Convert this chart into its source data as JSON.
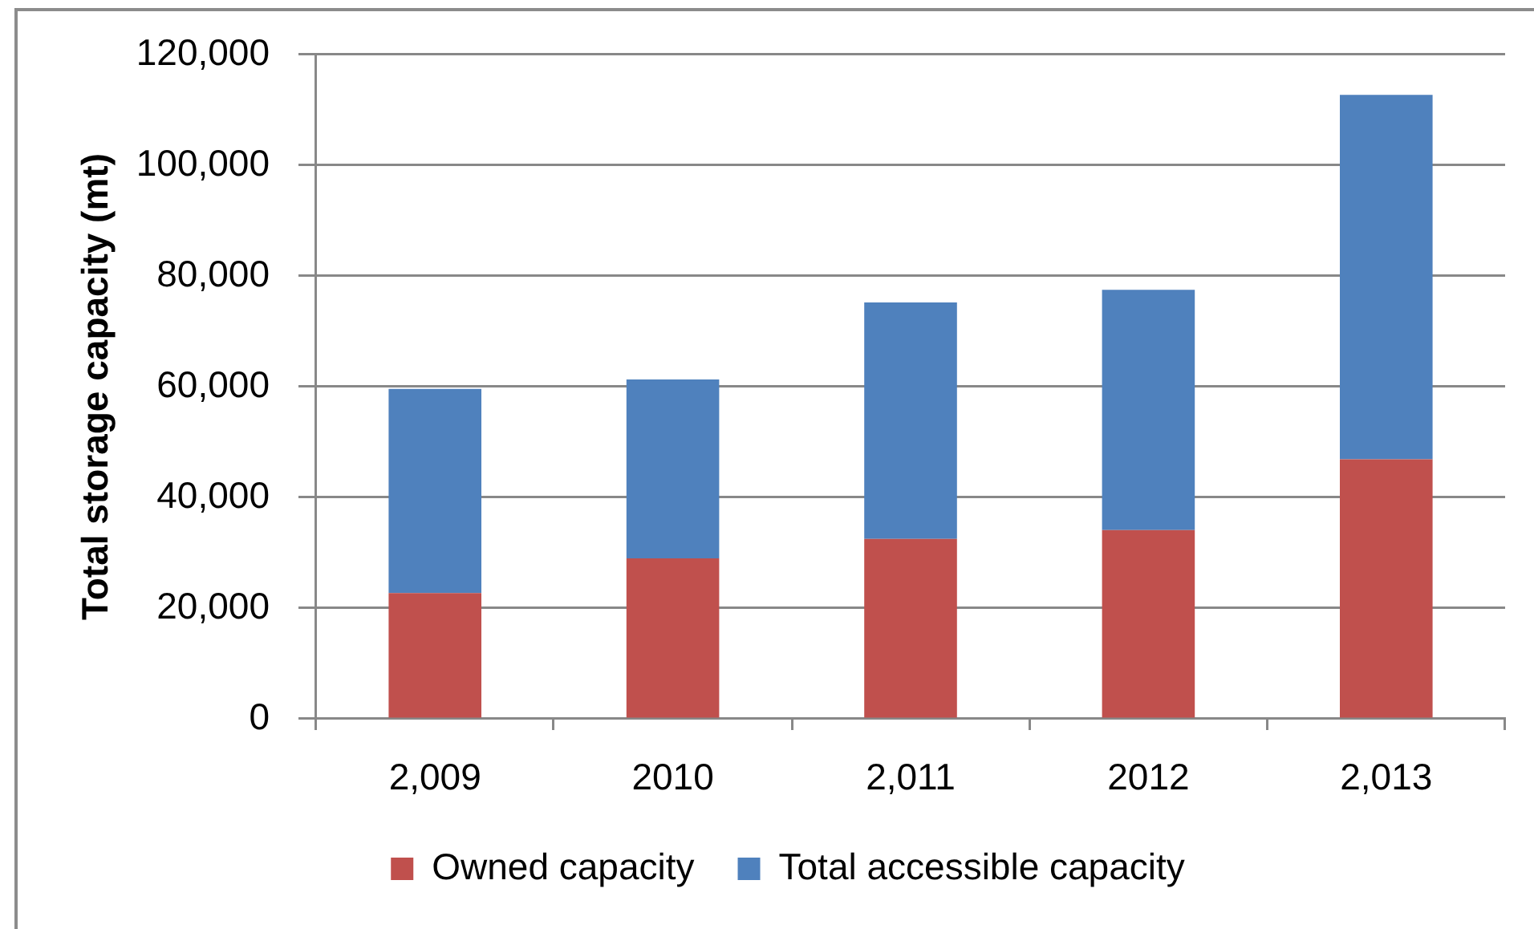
{
  "chart_data": {
    "type": "bar",
    "categories": [
      "2,009",
      "2010",
      "2,011",
      "2012",
      "2,013"
    ],
    "series": [
      {
        "name": "Owned capacity",
        "color": "#c0504d",
        "values": [
          22700,
          29000,
          32500,
          34100,
          46900
        ]
      },
      {
        "name": "Total accessible capacity",
        "color": "#4f81bd",
        "values": [
          36900,
          32300,
          42700,
          43400,
          65800
        ]
      }
    ],
    "stacked": true,
    "ylabel": "Total storage capacity (mt)",
    "ylim": [
      0,
      120000
    ],
    "yticks": [
      0,
      {
        "value": 20000,
        "label": "20,000"
      },
      {
        "value": 40000,
        "label": "40,000"
      },
      {
        "value": 60000,
        "label": "60,000"
      },
      {
        "value": 80000,
        "label": "80,000"
      },
      {
        "value": 100000,
        "label": "100,000"
      },
      {
        "value": 120000,
        "label": "120,000"
      }
    ],
    "grid": "y",
    "legend": "bottom"
  }
}
